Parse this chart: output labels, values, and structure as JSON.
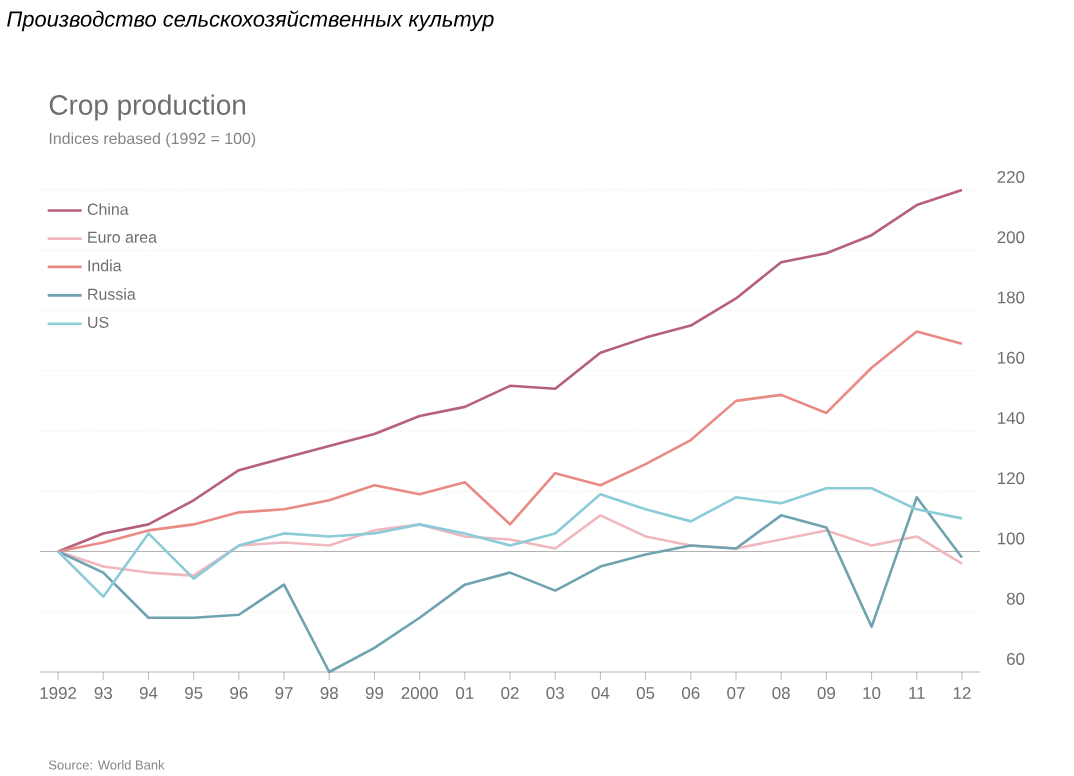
{
  "chart_data": {
    "type": "line",
    "title": "Производство сельскохозяйственных культур",
    "subtitle": "Crop production",
    "ylabel": "Indices rebased (1992 = 100)",
    "x": [
      1992,
      1993,
      1994,
      1995,
      1996,
      1997,
      1998,
      1999,
      2000,
      2001,
      2002,
      2003,
      2004,
      2005,
      2006,
      2007,
      2008,
      2009,
      2010,
      2011,
      2012
    ],
    "series": [
      {
        "name": "China",
        "color": "#b5607e",
        "values": [
          100,
          106,
          109,
          117,
          127,
          131,
          135,
          139,
          145,
          148,
          155,
          154,
          166,
          171,
          175,
          184,
          196,
          199,
          205,
          215,
          220
        ]
      },
      {
        "name": "Euro area",
        "color": "#f0b8be",
        "values": [
          100,
          95,
          93,
          92,
          102,
          103,
          102,
          107,
          109,
          105,
          104,
          101,
          112,
          105,
          102,
          101,
          104,
          107,
          102,
          105,
          96
        ]
      },
      {
        "name": "India",
        "color": "#e98a85",
        "values": [
          100,
          103,
          107,
          109,
          113,
          114,
          117,
          122,
          119,
          123,
          109,
          126,
          122,
          129,
          137,
          150,
          152,
          146,
          161,
          173,
          169
        ]
      },
      {
        "name": "Russia",
        "color": "#6fa3b0",
        "values": [
          100,
          93,
          78,
          78,
          79,
          89,
          60,
          68,
          78,
          89,
          93,
          87,
          95,
          99,
          102,
          101,
          112,
          108,
          75,
          118,
          98
        ]
      },
      {
        "name": "US",
        "color": "#8ccbd8",
        "values": [
          100,
          85,
          106,
          91,
          102,
          106,
          105,
          106,
          109,
          106,
          102,
          106,
          119,
          114,
          110,
          118,
          116,
          121,
          121,
          114,
          111
        ]
      }
    ],
    "xlim": [
      1991.6,
      2012.4
    ],
    "xticks": [
      {
        "value": 1992,
        "label": "1992"
      },
      {
        "value": 1993,
        "label": "93"
      },
      {
        "value": 1994,
        "label": "94"
      },
      {
        "value": 1995,
        "label": "95"
      },
      {
        "value": 1996,
        "label": "96"
      },
      {
        "value": 1997,
        "label": "97"
      },
      {
        "value": 1998,
        "label": "98"
      },
      {
        "value": 1999,
        "label": "99"
      },
      {
        "value": 2000,
        "label": "2000"
      },
      {
        "value": 2001,
        "label": "01"
      },
      {
        "value": 2002,
        "label": "02"
      },
      {
        "value": 2003,
        "label": "03"
      },
      {
        "value": 2004,
        "label": "04"
      },
      {
        "value": 2005,
        "label": "05"
      },
      {
        "value": 2006,
        "label": "06"
      },
      {
        "value": 2007,
        "label": "07"
      },
      {
        "value": 2008,
        "label": "08"
      },
      {
        "value": 2009,
        "label": "09"
      },
      {
        "value": 2010,
        "label": "10"
      },
      {
        "value": 2011,
        "label": "11"
      },
      {
        "value": 2012,
        "label": "12"
      }
    ],
    "ylim": [
      60,
      220
    ],
    "yticks": [
      60,
      80,
      100,
      120,
      140,
      160,
      180,
      200,
      220
    ],
    "grid": "y",
    "legend": "top left",
    "line_style": "solid",
    "marker": "none",
    "ref_lines": [
      {
        "axis": "y",
        "value": 100,
        "color": "#a0a0a0"
      }
    ],
    "annotations": [
      "Source: World Bank"
    ]
  }
}
